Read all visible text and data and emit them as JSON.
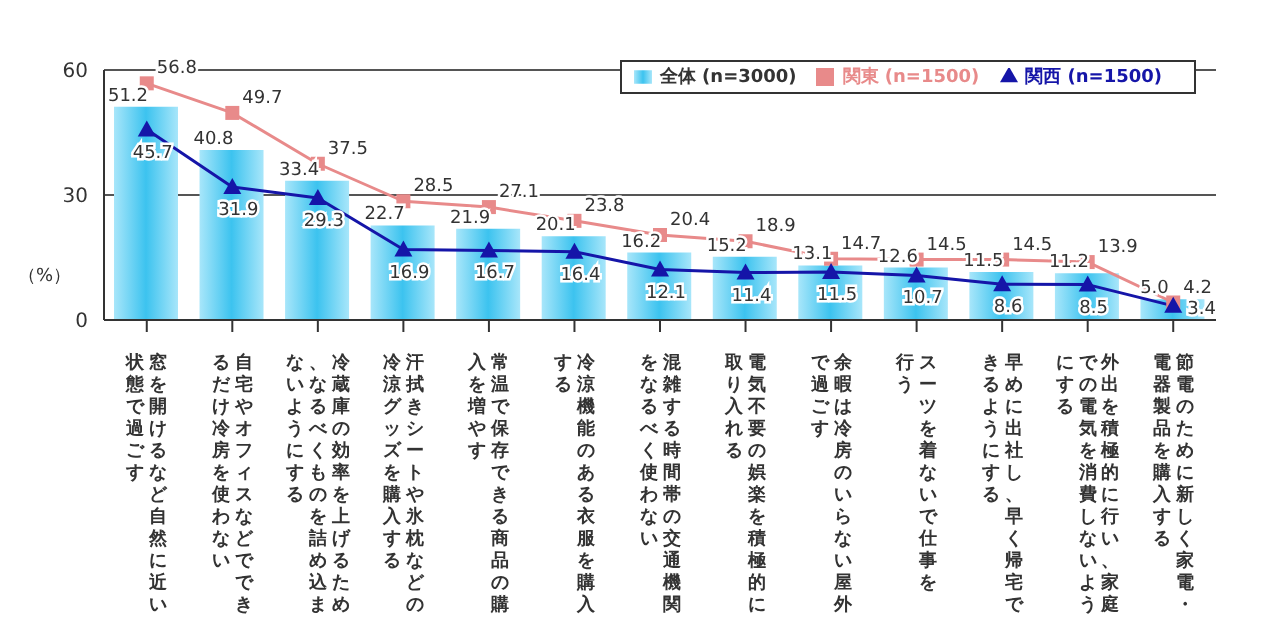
{
  "chart_data": {
    "type": "bar",
    "ylabel": "（%）",
    "categories": [
      "窓を開けるなど自然に近い状態で過ごす",
      "自宅やオフィスなどでできるだけ冷房を使わない",
      "冷蔵庫の効率を上げるため、なるべくものを詰め込まないようにする",
      "汗拭きシートや氷枕などの冷涼グッズを購入する",
      "常温で保存できる商品の購入を増やす",
      "冷涼機能のある衣服を購入する",
      "混雑する時間帯の交通機関をなるべく使わない",
      "電気不要の娯楽を積極的に取り入れる",
      "余暇は冷房のいらない屋外で過ごす",
      "スーツを着ないで仕事を行う",
      "早めに出社し、早く帰宅できるようにする",
      "外出を積極的に行い、家庭での電気を消費しないようにする",
      "節電のために新しく家電・電器製品を購入する"
    ],
    "series": [
      {
        "name": "全体 (n=3000)",
        "color": "#3cc3ef",
        "values": [
          51.2,
          40.8,
          33.4,
          22.7,
          21.9,
          20.1,
          16.2,
          15.2,
          13.1,
          12.6,
          11.5,
          11.2,
          5.0
        ],
        "value_labels": [
          "51.2",
          "40.8",
          "33.4",
          "22.7",
          "21.9",
          "20.1",
          "16.2",
          "15.2",
          "13.1",
          "12.6",
          "11.5",
          "11.2",
          "5.0"
        ]
      },
      {
        "name": "関東 (n=1500)",
        "type": "line",
        "color": "#e88a8a",
        "marker": "square",
        "values": [
          56.8,
          49.7,
          37.5,
          28.5,
          27.1,
          23.8,
          20.4,
          18.9,
          14.7,
          14.5,
          14.5,
          13.9,
          4.2
        ]
      },
      {
        "name": "関西 (n=1500)",
        "type": "line",
        "color": "#1515a8",
        "marker": "triangle",
        "values": [
          45.7,
          31.9,
          29.3,
          16.9,
          16.7,
          16.4,
          12.1,
          11.4,
          11.5,
          10.7,
          8.6,
          8.5,
          3.4
        ]
      }
    ],
    "ylim": [
      0,
      60
    ],
    "yticks": [
      0,
      30,
      60
    ],
    "grid": "y",
    "legend": "top right",
    "data_labels": true
  }
}
